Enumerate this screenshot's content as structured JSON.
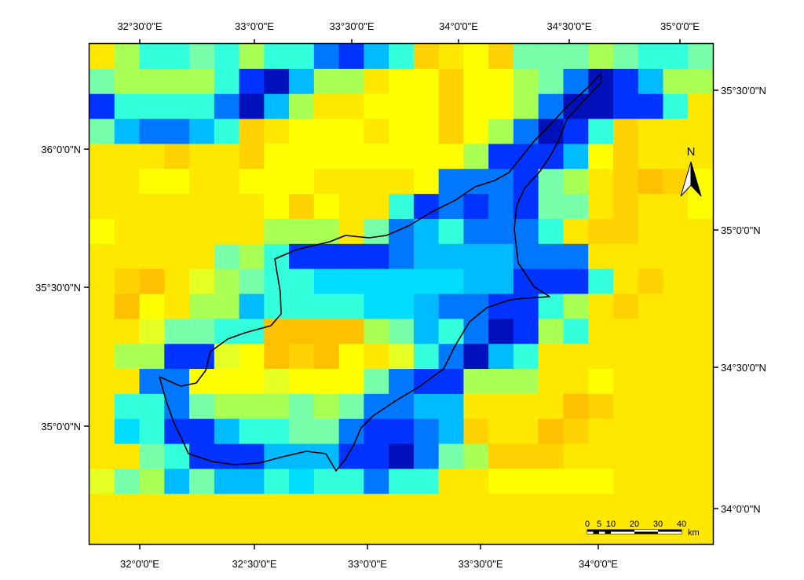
{
  "top_axis_labels": [
    "32°30'0\"E",
    "33°0'0\"E",
    "33°30'0\"E",
    "34°0'0\"E",
    "34°30'0\"E",
    "35°0'0\"E"
  ],
  "bottom_axis_labels": [
    "32°0'0\"E",
    "32°30'0\"E",
    "33°0'0\"E",
    "33°30'0\"E",
    "34°0'0\"E"
  ],
  "left_axis_labels": [
    "36°0'0\"N",
    "35°30'0\"N",
    "35°0'0\"N"
  ],
  "right_axis_labels": [
    "35°30'0\"N",
    "35°0'0\"N",
    "34°30'0\"N",
    "34°0'0\"N"
  ],
  "north_arrow": {
    "label": "N",
    "icon": "north-arrow-icon"
  },
  "scale_bar": {
    "labels": [
      "0",
      "5",
      "10",
      "20",
      "30",
      "40"
    ],
    "values": [
      0,
      5,
      10,
      20,
      30,
      40
    ],
    "unit": "km"
  },
  "palette": {
    "Y": "#ffff00",
    "y": "#ffe800",
    "o": "#ffd200",
    "O": "#ffc000",
    "l": "#e6ff22",
    "g": "#aaff55",
    "t": "#77ffaa",
    "a": "#33ffdd",
    "c": "#00ddff",
    "s": "#00bbff",
    "b": "#0077ff",
    "B": "#0033ff",
    "n": "#0011bb"
  },
  "raster_rows": [
    "ygaatagaabBsaoyYotttgtaat",
    "tggggaBnsggyYYoYYgtbnBsgg",
    "BaaaabnsgyyYYYoYYgbnnBBay",
    "tsbbsaoyYYYyYYoYgbnBaoyyy",
    "yyyoyyoYYYYYYYYgBBBsYoyyy",
    "yyYYyyYYYyyyyYbbbBtgyoOoY",
    "yyyyyyyYoYyyaBbBbBttyoyyY",
    "Yyyyyyygggytbsabbbayooyyy",
    "yyyyytgaBBBBbssssbbbyyyyy",
    "yoOylgtaaccccccssBBBayoyy",
    "yOYyggsaaaaccsbbBBagyoyyy",
    "yylttaaOOOOgtsabnBgayyyyy",
    "yggBBlYOoOYylabnsayyyyyyy",
    "yybbYYYlYYYtbBBgggyyYyyyy",
    "yaabtgggtgtbbssyyyyOoyyyy",
    "ycaBBsaattbBBbsoyyOoyyyyy",
    "yytaBBBsssBBnbtgoooyyyyyy",
    "ltgstssacaabaayyYYYYYyyyy",
    "yyyyyyyyyyyyyyyyyyyyyyyyy",
    "yyyyyyyyyyyyyyyyyyyyyyyyy"
  ]
}
